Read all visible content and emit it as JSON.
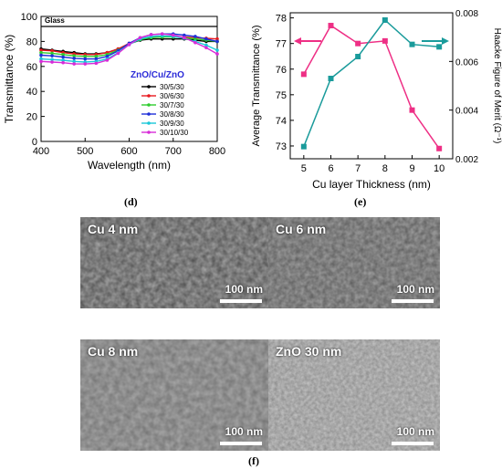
{
  "chart_data": [
    {
      "id": "d",
      "type": "line",
      "panel_label": "(d)",
      "xlabel": "Wavelength (nm)",
      "ylabel": "Transmittance (%)",
      "xlim": [
        400,
        800
      ],
      "ylim": [
        0,
        100
      ],
      "x_ticks": [
        400,
        500,
        600,
        700,
        800
      ],
      "y_ticks": [
        0,
        20,
        40,
        60,
        80,
        100
      ],
      "annotation": "Glass",
      "legend_title": "ZnO/Cu/ZnO",
      "legend_position": "center-right",
      "x": [
        400,
        425,
        450,
        475,
        500,
        525,
        550,
        575,
        600,
        625,
        650,
        675,
        700,
        725,
        750,
        775,
        800
      ],
      "series": [
        {
          "name": "Glass",
          "color": "#000000",
          "values": [
            92,
            92,
            92,
            92,
            92,
            92,
            92,
            92,
            92,
            92,
            92,
            92,
            92,
            92,
            92,
            92,
            92
          ]
        },
        {
          "name": "30/5/30",
          "color": "#000000",
          "values": [
            74,
            73,
            72,
            71,
            70,
            70,
            71,
            74,
            78,
            81,
            82,
            82,
            82,
            82,
            81,
            80,
            80
          ]
        },
        {
          "name": "30/6/30",
          "color": "#e8191f",
          "values": [
            73,
            72.5,
            71,
            70,
            69.5,
            69.5,
            71,
            74,
            78.5,
            82,
            83.5,
            84,
            84,
            83.5,
            83,
            82.5,
            82
          ]
        },
        {
          "name": "30/7/30",
          "color": "#2ecc2e",
          "values": [
            71,
            70.5,
            69.5,
            68.5,
            68,
            68,
            69.5,
            73,
            78,
            81.5,
            83,
            83.5,
            83.5,
            83,
            82,
            81,
            80
          ]
        },
        {
          "name": "30/8/30",
          "color": "#1f2fd8",
          "values": [
            69,
            68.5,
            67.5,
            66.5,
            66,
            66,
            68,
            72.5,
            78.5,
            83,
            85.5,
            86,
            86,
            85,
            84,
            82,
            80
          ]
        },
        {
          "name": "30/9/30",
          "color": "#19c8d8",
          "values": [
            66,
            65.5,
            65,
            64,
            63.5,
            64,
            66,
            71,
            77.5,
            82,
            84,
            84.5,
            84,
            82.5,
            80,
            77,
            73
          ]
        },
        {
          "name": "30/10/30",
          "color": "#d82bd8",
          "values": [
            64,
            63.5,
            63,
            62,
            62,
            62.5,
            65,
            70.5,
            77.5,
            83,
            85.5,
            86,
            85,
            83,
            79,
            75,
            70
          ]
        }
      ]
    },
    {
      "id": "e",
      "type": "line",
      "panel_label": "(e)",
      "xlabel": "Cu layer Thickness (nm)",
      "ylabel": "Average Transmittance (%)",
      "ylabel_right": "Haacke Figure of Merit (Ω⁻¹)",
      "xlim": [
        4.5,
        10.5
      ],
      "ylim": [
        72.5,
        78.2
      ],
      "y2lim": [
        0.002,
        0.008
      ],
      "x_ticks": [
        5,
        6,
        7,
        8,
        9,
        10
      ],
      "y_ticks": [
        73,
        74,
        75,
        76,
        77,
        78
      ],
      "y2_ticks": [
        "0.002",
        "0.004",
        "0.006",
        "0.008"
      ],
      "x": [
        5,
        6,
        7,
        8,
        9,
        10
      ],
      "series": [
        {
          "name": "Average Transmittance",
          "color": "#ee2f85",
          "axis": "left",
          "values": [
            75.8,
            77.7,
            77.0,
            77.1,
            74.4,
            72.9
          ]
        },
        {
          "name": "Haacke Figure of Merit",
          "color": "#1a9b9b",
          "axis": "right",
          "values": [
            0.0025,
            0.0053,
            0.0062,
            0.0077,
            0.0067,
            0.0066
          ]
        }
      ]
    }
  ],
  "sem": {
    "panel_label": "(f)",
    "scale_bar": "100 nm",
    "images": [
      {
        "label": "Cu 4 nm"
      },
      {
        "label": "Cu 6 nm"
      },
      {
        "label": "Cu 8 nm"
      },
      {
        "label": "ZnO 30 nm"
      }
    ]
  }
}
